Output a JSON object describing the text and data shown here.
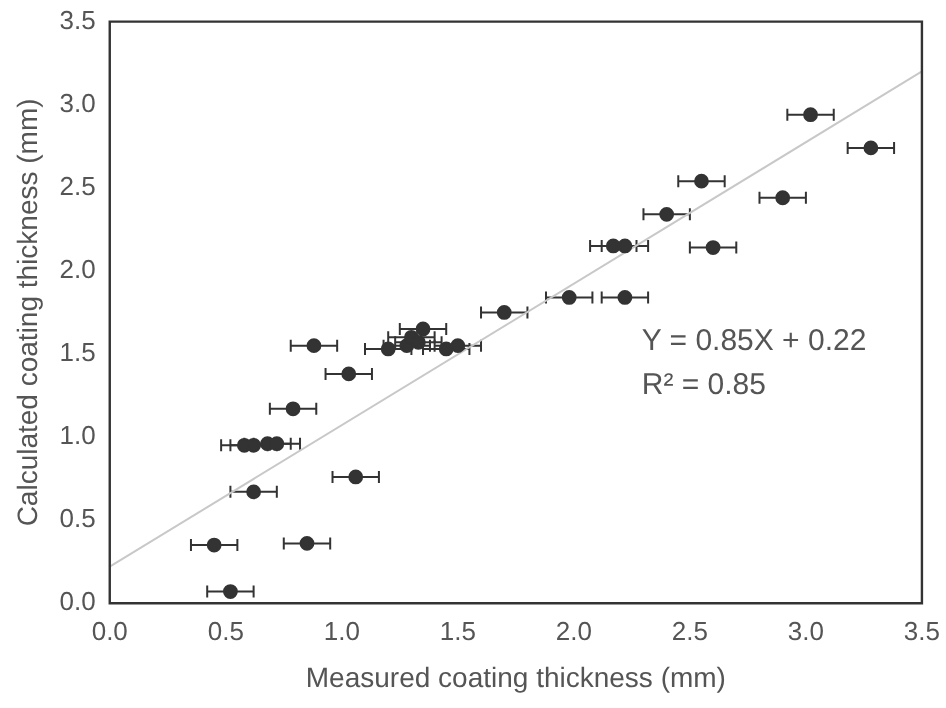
{
  "chart_data": {
    "type": "scatter",
    "xlabel": "Measured coating thickness (mm)",
    "ylabel": "Calculated coating thickness (mm)",
    "xlim": [
      0,
      3.5
    ],
    "ylim": [
      0,
      3.5
    ],
    "xticks": [
      {
        "value": 0,
        "label": "0.0"
      },
      0.5,
      {
        "value": 1,
        "label": "1.0"
      },
      1.5,
      {
        "value": 2,
        "label": "2.0"
      },
      2.5,
      {
        "value": 3,
        "label": "3.0"
      },
      3.5
    ],
    "yticks": [
      {
        "value": 0,
        "label": "0.0"
      },
      0.5,
      {
        "value": 1,
        "label": "1.0"
      },
      1.5,
      {
        "value": 2,
        "label": "2.0"
      },
      2.5,
      {
        "value": 3,
        "label": "3.0"
      },
      3.5
    ],
    "grid": false,
    "legend": false,
    "marker": "circle",
    "series": [
      {
        "type": "scatter",
        "color": "#333333",
        "x": [
          0.52,
          0.45,
          0.85,
          0.62,
          1.06,
          0.58,
          0.62,
          0.68,
          0.72,
          0.79,
          1.03,
          0.88,
          1.2,
          1.28,
          1.3,
          1.35,
          1.45,
          1.5,
          1.33,
          1.7,
          1.98,
          2.22,
          2.17,
          2.22,
          2.4,
          2.6,
          2.55,
          2.9,
          3.02,
          3.28
        ],
        "values": [
          0.07,
          0.35,
          0.36,
          0.67,
          0.76,
          0.95,
          0.95,
          0.96,
          0.96,
          1.17,
          1.38,
          1.55,
          1.53,
          1.55,
          1.6,
          1.65,
          1.53,
          1.55,
          1.57,
          1.75,
          1.84,
          1.84,
          2.15,
          2.15,
          2.34,
          2.14,
          2.54,
          2.44,
          2.94,
          2.74
        ],
        "xerrors": [
          0.1,
          0.1,
          0.1,
          0.1,
          0.1,
          0.1,
          0.1,
          0.1,
          0.1,
          0.1,
          0.1,
          0.1,
          0.1,
          0.1,
          0.1,
          0.1,
          0.1,
          0.1,
          0.1,
          0.1,
          0.1,
          0.1,
          0.1,
          0.1,
          0.1,
          0.1,
          0.1,
          0.1,
          0.1,
          0.1
        ]
      },
      {
        "type": "line",
        "color": "#c8c8c8",
        "x": [
          0,
          3.5
        ],
        "values": [
          0.22,
          3.2
        ],
        "marker": "none"
      }
    ],
    "annotations": [
      "Y = 0.85X + 0.22",
      "R² = 0.85"
    ]
  }
}
